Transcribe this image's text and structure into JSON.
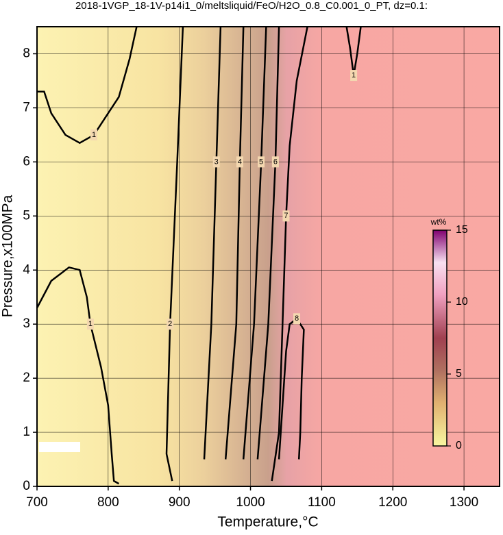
{
  "chart_data": {
    "type": "contour",
    "title": "2018-1VGP_18-1V-p14i1_0/meltsliquid/FeO/H2O_0.8_C0.001_0_PT, dz=0.1:",
    "x_label": "Temperature,°C",
    "y_label": "Pressure,x100MPa",
    "xlim": [
      700,
      1350
    ],
    "ylim": [
      0,
      8.5
    ],
    "xticks": [
      700,
      800,
      900,
      1000,
      1100,
      1200,
      1300
    ],
    "yticks": [
      0,
      1,
      2,
      3,
      4,
      5,
      6,
      7,
      8
    ],
    "grid": true,
    "contours": [
      {
        "level": 1,
        "x": [
          700,
          710,
          720,
          740,
          760,
          780,
          800,
          815,
          830,
          840
        ],
        "y": [
          7.3,
          7.3,
          6.9,
          6.5,
          6.35,
          6.5,
          6.9,
          7.2,
          7.9,
          8.5
        ]
      },
      {
        "level": 1,
        "x": [
          700,
          720,
          745,
          760,
          770,
          775,
          790,
          800,
          805,
          808,
          815
        ],
        "y": [
          3.3,
          3.8,
          4.05,
          4.0,
          3.5,
          3.0,
          2.2,
          1.5,
          0.6,
          0.1,
          0.05
        ]
      },
      {
        "level": 1,
        "x": [
          1135,
          1140,
          1145,
          1150,
          1155
        ],
        "y": [
          8.5,
          8.1,
          7.6,
          8.0,
          8.5
        ]
      },
      {
        "level": 2,
        "x": [
          890,
          882,
          887,
          897,
          905
        ],
        "y": [
          0.1,
          0.6,
          3,
          6,
          8.5
        ]
      },
      {
        "level": 3,
        "x": [
          935,
          945,
          952,
          958
        ],
        "y": [
          0.5,
          3,
          6,
          8.5
        ]
      },
      {
        "level": 4,
        "x": [
          965,
          980,
          985,
          990
        ],
        "y": [
          0.5,
          3,
          6,
          8.5
        ]
      },
      {
        "level": 5,
        "x": [
          990,
          1005,
          1015,
          1022
        ],
        "y": [
          0.5,
          3,
          6,
          8.5
        ]
      },
      {
        "level": 6,
        "x": [
          1010,
          1025,
          1035,
          1040
        ],
        "y": [
          0.5,
          3,
          6,
          8.5
        ]
      },
      {
        "level": 7,
        "x": [
          1030,
          1040,
          1045,
          1050,
          1055,
          1065,
          1080
        ],
        "y": [
          0.1,
          1,
          3,
          5,
          6.3,
          7.5,
          8.5
        ]
      },
      {
        "level": 8,
        "x": [
          1040,
          1045,
          1050,
          1055,
          1065,
          1075,
          1072,
          1070,
          1068
        ],
        "y": [
          0.5,
          1.5,
          2.5,
          3.0,
          3.1,
          2.9,
          2.0,
          1.0,
          0.5
        ]
      }
    ],
    "colorbar": {
      "label": "wt%",
      "lim": [
        0,
        15
      ],
      "ticks": [
        0,
        5,
        10,
        15
      ]
    }
  }
}
